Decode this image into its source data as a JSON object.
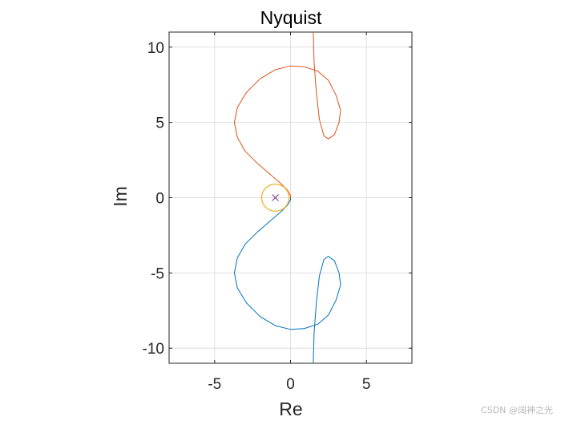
{
  "chart_data": {
    "type": "line",
    "title": "Nyquist",
    "xlabel": "Re",
    "ylabel": "Im",
    "xlim": [
      -8,
      8
    ],
    "ylim": [
      -11,
      11
    ],
    "xticks": [
      -5,
      0,
      5
    ],
    "yticks": [
      -10,
      -5,
      0,
      5,
      10
    ],
    "x_tick_labels": [
      "-5",
      "0",
      "5"
    ],
    "y_tick_labels": [
      "-10",
      "-5",
      "0",
      "5",
      "10"
    ],
    "grid": true,
    "series": [
      {
        "color": "#0072BD",
        "points": [
          [
            1.5,
            -11.0
          ],
          [
            1.55,
            -9.0
          ],
          [
            1.7,
            -7.0
          ],
          [
            1.9,
            -5.2
          ],
          [
            2.2,
            -4.1
          ],
          [
            2.5,
            -3.9
          ],
          [
            2.9,
            -4.2
          ],
          [
            3.2,
            -5.0
          ],
          [
            3.3,
            -5.8
          ],
          [
            3.0,
            -6.8
          ],
          [
            2.5,
            -7.8
          ],
          [
            1.8,
            -8.4
          ],
          [
            0.9,
            -8.7
          ],
          [
            0.0,
            -8.75
          ],
          [
            -1.0,
            -8.5
          ],
          [
            -2.0,
            -7.9
          ],
          [
            -2.9,
            -7.0
          ],
          [
            -3.5,
            -6.0
          ],
          [
            -3.7,
            -5.0
          ],
          [
            -3.5,
            -4.0
          ],
          [
            -3.0,
            -3.1
          ],
          [
            -2.2,
            -2.3
          ],
          [
            -1.4,
            -1.6
          ],
          [
            -0.7,
            -1.0
          ],
          [
            -0.2,
            -0.5
          ],
          [
            0.0,
            -0.15
          ],
          [
            0.0,
            0.0
          ]
        ]
      },
      {
        "color": "#D95319",
        "points": [
          [
            1.5,
            11.0
          ],
          [
            1.55,
            9.0
          ],
          [
            1.7,
            7.0
          ],
          [
            1.9,
            5.2
          ],
          [
            2.2,
            4.1
          ],
          [
            2.5,
            3.9
          ],
          [
            2.9,
            4.2
          ],
          [
            3.2,
            5.0
          ],
          [
            3.3,
            5.8
          ],
          [
            3.0,
            6.8
          ],
          [
            2.5,
            7.8
          ],
          [
            1.8,
            8.4
          ],
          [
            0.9,
            8.7
          ],
          [
            0.0,
            8.75
          ],
          [
            -1.0,
            8.5
          ],
          [
            -2.0,
            7.9
          ],
          [
            -2.9,
            7.0
          ],
          [
            -3.5,
            6.0
          ],
          [
            -3.7,
            5.0
          ],
          [
            -3.5,
            4.0
          ],
          [
            -3.0,
            3.1
          ],
          [
            -2.2,
            2.3
          ],
          [
            -1.4,
            1.6
          ],
          [
            -0.7,
            1.0
          ],
          [
            -0.2,
            0.5
          ],
          [
            0.0,
            0.15
          ],
          [
            0.0,
            0.0
          ]
        ]
      }
    ],
    "circle": {
      "center": [
        -1,
        0
      ],
      "radius": 0.9,
      "color": "#EDB120"
    },
    "marker": {
      "x": -1,
      "y": 0,
      "symbol": "x",
      "color": "#7E2F8E"
    }
  },
  "watermark": "CSDN @阔神之光"
}
